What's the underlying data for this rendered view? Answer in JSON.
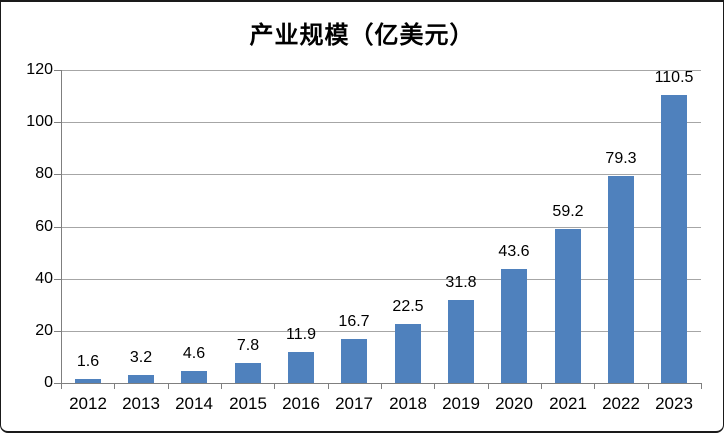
{
  "chart_data": {
    "type": "bar",
    "title": "产业规模（亿美元）",
    "categories": [
      "2012",
      "2013",
      "2014",
      "2015",
      "2016",
      "2017",
      "2018",
      "2019",
      "2020",
      "2021",
      "2022",
      "2023"
    ],
    "values": [
      1.6,
      3.2,
      4.6,
      7.8,
      11.9,
      16.7,
      22.5,
      31.8,
      43.6,
      59.2,
      79.3,
      110.5
    ],
    "value_labels": [
      "1.6",
      "3.2",
      "4.6",
      "7.8",
      "11.9",
      "16.7",
      "22.5",
      "31.8",
      "43.6",
      "59.2",
      "79.3",
      "110.5"
    ],
    "xlabel": "",
    "ylabel": "",
    "ylim": [
      0,
      120
    ],
    "yticks": [
      0,
      20,
      40,
      60,
      80,
      100,
      120
    ],
    "grid": "horizontal",
    "legend": "none",
    "data_labels": "outside-end",
    "colors": {
      "bar": "#4F81BD",
      "gridline": "#A6A6A6",
      "axis": "#7F7F7F",
      "text": "#000000"
    }
  }
}
